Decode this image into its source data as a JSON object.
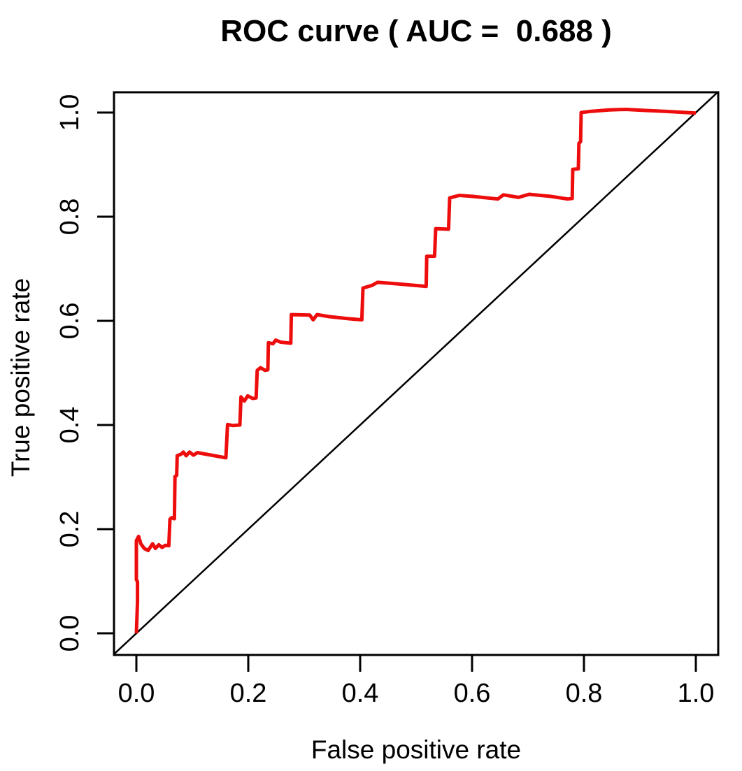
{
  "page": {
    "background": "#ffffff"
  },
  "chart_data": {
    "type": "line",
    "title": "ROC curve ( AUC =  0.688 )",
    "xlabel": "False positive rate",
    "ylabel": "True positive rate",
    "auc": 0.688,
    "xlim": [
      -0.04,
      1.04
    ],
    "ylim": [
      -0.04,
      1.04
    ],
    "grid": false,
    "legend": null,
    "xticks": {
      "values": [
        0.0,
        0.2,
        0.4,
        0.6,
        0.8,
        1.0
      ],
      "labels": [
        "0.0",
        "0.2",
        "0.4",
        "0.6",
        "0.8",
        "1.0"
      ]
    },
    "yticks": {
      "values": [
        0.0,
        0.2,
        0.4,
        0.6,
        0.8,
        1.0
      ],
      "labels": [
        "0.0",
        "0.2",
        "0.4",
        "0.6",
        "0.8",
        "1.0"
      ]
    },
    "axis_color": "#000000",
    "series": [
      {
        "name": "reference-diagonal",
        "description": "chance line y = x",
        "color": "#000000",
        "line_width": 2.5,
        "points": [
          [
            -0.04,
            -0.04
          ],
          [
            1.04,
            1.04
          ]
        ]
      },
      {
        "name": "roc-curve",
        "description": "ROC curve (TPR vs FPR)",
        "color": "#ee0d0d",
        "line_width": 5,
        "points": [
          [
            0.0,
            0.0
          ],
          [
            0.002,
            0.06
          ],
          [
            0.002,
            0.099
          ],
          [
            0.0,
            0.103
          ],
          [
            0.0,
            0.178
          ],
          [
            0.004,
            0.186
          ],
          [
            0.008,
            0.172
          ],
          [
            0.014,
            0.163
          ],
          [
            0.021,
            0.159
          ],
          [
            0.029,
            0.172
          ],
          [
            0.034,
            0.163
          ],
          [
            0.04,
            0.17
          ],
          [
            0.046,
            0.165
          ],
          [
            0.052,
            0.169
          ],
          [
            0.058,
            0.168
          ],
          [
            0.06,
            0.219
          ],
          [
            0.063,
            0.222
          ],
          [
            0.068,
            0.22
          ],
          [
            0.069,
            0.301
          ],
          [
            0.072,
            0.303
          ],
          [
            0.073,
            0.341
          ],
          [
            0.08,
            0.344
          ],
          [
            0.084,
            0.348
          ],
          [
            0.089,
            0.341
          ],
          [
            0.095,
            0.348
          ],
          [
            0.102,
            0.342
          ],
          [
            0.109,
            0.347
          ],
          [
            0.119,
            0.345
          ],
          [
            0.14,
            0.341
          ],
          [
            0.16,
            0.337
          ],
          [
            0.163,
            0.401
          ],
          [
            0.172,
            0.399
          ],
          [
            0.185,
            0.4
          ],
          [
            0.187,
            0.454
          ],
          [
            0.193,
            0.446
          ],
          [
            0.199,
            0.456
          ],
          [
            0.208,
            0.451
          ],
          [
            0.214,
            0.452
          ],
          [
            0.216,
            0.505
          ],
          [
            0.222,
            0.51
          ],
          [
            0.23,
            0.505
          ],
          [
            0.235,
            0.506
          ],
          [
            0.236,
            0.558
          ],
          [
            0.244,
            0.556
          ],
          [
            0.249,
            0.563
          ],
          [
            0.258,
            0.559
          ],
          [
            0.276,
            0.557
          ],
          [
            0.277,
            0.612
          ],
          [
            0.31,
            0.611
          ],
          [
            0.316,
            0.602
          ],
          [
            0.323,
            0.612
          ],
          [
            0.345,
            0.608
          ],
          [
            0.38,
            0.604
          ],
          [
            0.403,
            0.602
          ],
          [
            0.405,
            0.663
          ],
          [
            0.421,
            0.668
          ],
          [
            0.431,
            0.674
          ],
          [
            0.456,
            0.672
          ],
          [
            0.51,
            0.667
          ],
          [
            0.518,
            0.666
          ],
          [
            0.519,
            0.724
          ],
          [
            0.533,
            0.724
          ],
          [
            0.535,
            0.777
          ],
          [
            0.558,
            0.776
          ],
          [
            0.56,
            0.836
          ],
          [
            0.577,
            0.841
          ],
          [
            0.6,
            0.839
          ],
          [
            0.646,
            0.834
          ],
          [
            0.656,
            0.842
          ],
          [
            0.683,
            0.837
          ],
          [
            0.702,
            0.843
          ],
          [
            0.74,
            0.839
          ],
          [
            0.771,
            0.834
          ],
          [
            0.779,
            0.835
          ],
          [
            0.78,
            0.891
          ],
          [
            0.79,
            0.892
          ],
          [
            0.791,
            0.941
          ],
          [
            0.794,
            0.944
          ],
          [
            0.795,
            1.0
          ],
          [
            0.81,
            1.002
          ],
          [
            0.845,
            1.005
          ],
          [
            0.875,
            1.006
          ],
          [
            0.91,
            1.004
          ],
          [
            0.95,
            1.002
          ],
          [
            1.0,
            0.999
          ]
        ]
      }
    ]
  }
}
